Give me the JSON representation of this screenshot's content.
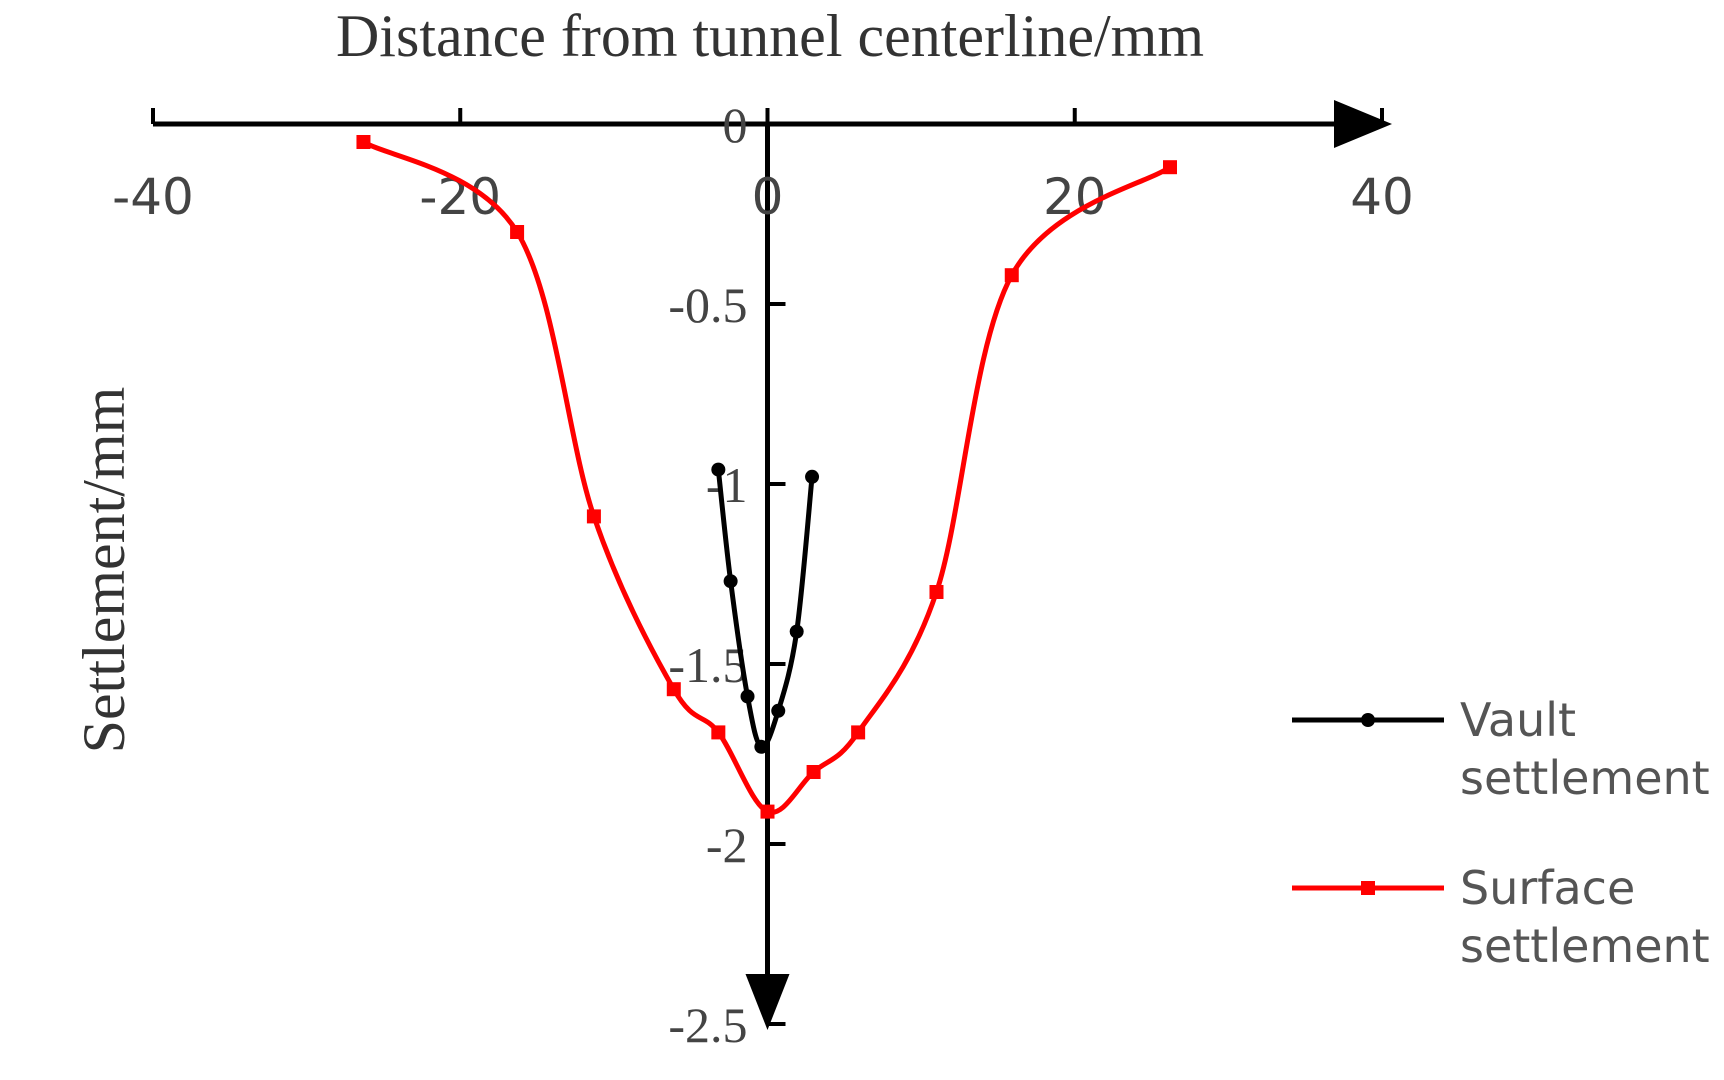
{
  "chart_data": {
    "type": "line",
    "xlabel": "Distance from tunnel centerline/mm",
    "ylabel": "Settlement/mm",
    "xlim": [
      -40,
      40
    ],
    "ylim": [
      -2.5,
      0
    ],
    "x_ticks": [
      -40,
      -20,
      0,
      20,
      40
    ],
    "x_tick_labels": [
      "-40",
      "-20",
      "0",
      "20",
      "40"
    ],
    "y_ticks": [
      0,
      -0.5,
      -1,
      -1.5,
      -2,
      -2.5
    ],
    "y_tick_labels": [
      "0",
      "-0.5",
      "-1",
      "-1.5",
      "-2",
      "-2.5"
    ],
    "grid": false,
    "legend_position": "right",
    "series": [
      {
        "name": "Vault settlement",
        "color": "#000000",
        "marker": "circle",
        "x": [
          -3.2,
          -2.4,
          -1.3,
          -0.4,
          0.7,
          1.9,
          2.9
        ],
        "y": [
          -0.96,
          -1.27,
          -1.59,
          -1.73,
          -1.63,
          -1.41,
          -0.98
        ]
      },
      {
        "name": "Surface settlement",
        "color": "#ff0000",
        "marker": "square",
        "x": [
          -26.3,
          -16.3,
          -11.3,
          -6.1,
          -3.2,
          0,
          3.0,
          5.9,
          11.0,
          15.9,
          26.2
        ],
        "y": [
          -0.05,
          -0.3,
          -1.09,
          -1.57,
          -1.69,
          -1.91,
          -1.8,
          -1.69,
          -1.3,
          -0.42,
          -0.12
        ]
      }
    ]
  }
}
